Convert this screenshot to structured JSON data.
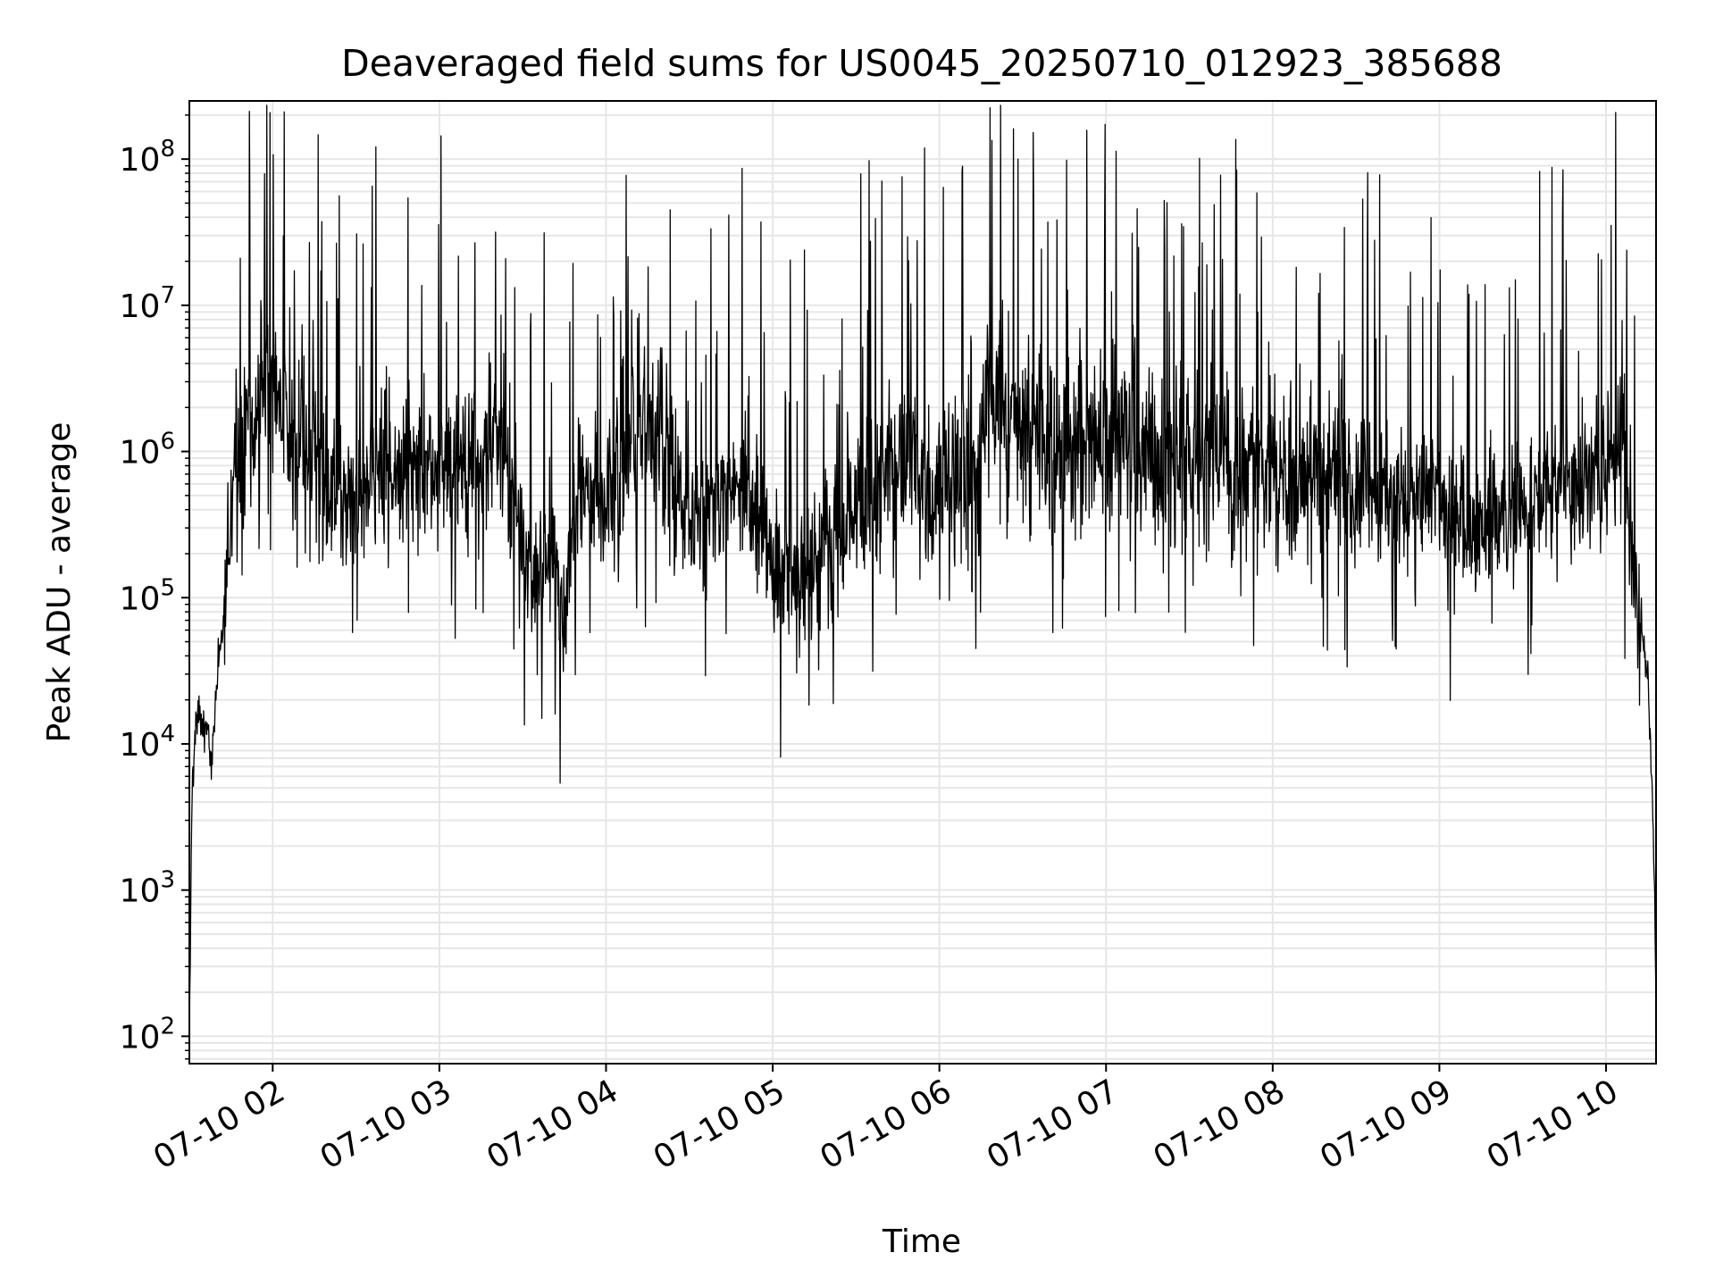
{
  "chart_data": {
    "type": "line",
    "title": "Deaveraged field sums for US0045_20250710_012923_385688",
    "xlabel": "Time",
    "ylabel": "Peak ADU - average",
    "yscale": "log",
    "xlim": [
      "2025-07-10 01:30",
      "2025-07-10 10:18"
    ],
    "ylim": [
      65,
      250000000
    ],
    "grid": true,
    "line_color": "#000000",
    "grid_color": "#e6e6e6",
    "x_ticks": [
      {
        "value": "2025-07-10 02:00",
        "label": "07-10 02"
      },
      {
        "value": "2025-07-10 03:00",
        "label": "07-10 03"
      },
      {
        "value": "2025-07-10 04:00",
        "label": "07-10 04"
      },
      {
        "value": "2025-07-10 05:00",
        "label": "07-10 05"
      },
      {
        "value": "2025-07-10 06:00",
        "label": "07-10 06"
      },
      {
        "value": "2025-07-10 07:00",
        "label": "07-10 07"
      },
      {
        "value": "2025-07-10 08:00",
        "label": "07-10 08"
      },
      {
        "value": "2025-07-10 09:00",
        "label": "07-10 09"
      },
      {
        "value": "2025-07-10 10:00",
        "label": "07-10 10"
      }
    ],
    "y_ticks": [
      {
        "value": 100,
        "base": "10",
        "exp": "2"
      },
      {
        "value": 1000,
        "base": "10",
        "exp": "3"
      },
      {
        "value": 10000,
        "base": "10",
        "exp": "4"
      },
      {
        "value": 100000,
        "base": "10",
        "exp": "5"
      },
      {
        "value": 1000000,
        "base": "10",
        "exp": "6"
      },
      {
        "value": 10000000,
        "base": "10",
        "exp": "7"
      },
      {
        "value": 100000000,
        "base": "10",
        "exp": "8"
      }
    ],
    "series": [
      {
        "x": [
          "2025-07-10 01:30",
          "2025-07-10 01:31",
          "2025-07-10 01:33",
          "2025-07-10 01:34",
          "2025-07-10 01:35",
          "2025-07-10 01:36",
          "2025-07-10 01:38",
          "2025-07-10 01:40",
          "2025-07-10 01:42",
          "2025-07-10 01:44",
          "2025-07-10 01:46",
          "2025-07-10 01:48",
          "2025-07-10 01:50",
          "2025-07-10 01:52",
          "2025-07-10 01:55",
          "2025-07-10 01:58",
          "2025-07-10 02:00",
          "2025-07-10 02:05",
          "2025-07-10 02:10",
          "2025-07-10 02:15",
          "2025-07-10 02:20",
          "2025-07-10 02:25",
          "2025-07-10 02:30",
          "2025-07-10 02:35",
          "2025-07-10 02:40",
          "2025-07-10 02:45",
          "2025-07-10 02:50",
          "2025-07-10 02:55",
          "2025-07-10 03:00",
          "2025-07-10 03:10",
          "2025-07-10 03:20",
          "2025-07-10 03:25",
          "2025-07-10 03:30",
          "2025-07-10 03:35",
          "2025-07-10 03:40",
          "2025-07-10 03:45",
          "2025-07-10 03:50",
          "2025-07-10 03:55",
          "2025-07-10 04:00",
          "2025-07-10 04:10",
          "2025-07-10 04:20",
          "2025-07-10 04:30",
          "2025-07-10 04:40",
          "2025-07-10 04:50",
          "2025-07-10 05:00",
          "2025-07-10 05:10",
          "2025-07-10 05:20",
          "2025-07-10 05:30",
          "2025-07-10 05:40",
          "2025-07-10 05:50",
          "2025-07-10 06:00",
          "2025-07-10 06:10",
          "2025-07-10 06:15",
          "2025-07-10 06:17",
          "2025-07-10 06:25",
          "2025-07-10 06:40",
          "2025-07-10 07:00",
          "2025-07-10 07:20",
          "2025-07-10 07:40",
          "2025-07-10 08:00",
          "2025-07-10 08:20",
          "2025-07-10 08:40",
          "2025-07-10 09:00",
          "2025-07-10 09:10",
          "2025-07-10 09:20",
          "2025-07-10 09:40",
          "2025-07-10 09:55",
          "2025-07-10 10:03",
          "2025-07-10 10:06",
          "2025-07-10 10:09",
          "2025-07-10 10:12",
          "2025-07-10 10:15",
          "2025-07-10 10:17",
          "2025-07-10 10:18"
        ],
        "y": [
          100,
          5000,
          20000,
          15000,
          12000,
          15000,
          7000,
          30000,
          60000,
          250000,
          600000,
          1000000,
          1200000,
          1500000,
          2000000,
          2500000,
          2000000,
          1500000,
          1200000,
          800000,
          600000,
          500000,
          400000,
          600000,
          700000,
          800000,
          600000,
          700000,
          800000,
          900000,
          1000000,
          700000,
          200000,
          150000,
          200000,
          80000,
          600000,
          500000,
          500000,
          1000000,
          1500000,
          300000,
          400000,
          600000,
          150000,
          120000,
          250000,
          400000,
          800000,
          700000,
          600000,
          700000,
          1000000,
          2000000,
          1500000,
          1000000,
          1200000,
          1000000,
          800000,
          700000,
          700000,
          500000,
          500000,
          250000,
          350000,
          500000,
          700000,
          1200000,
          1000000,
          200000,
          80000,
          30000,
          3000,
          150
        ]
      }
    ]
  }
}
